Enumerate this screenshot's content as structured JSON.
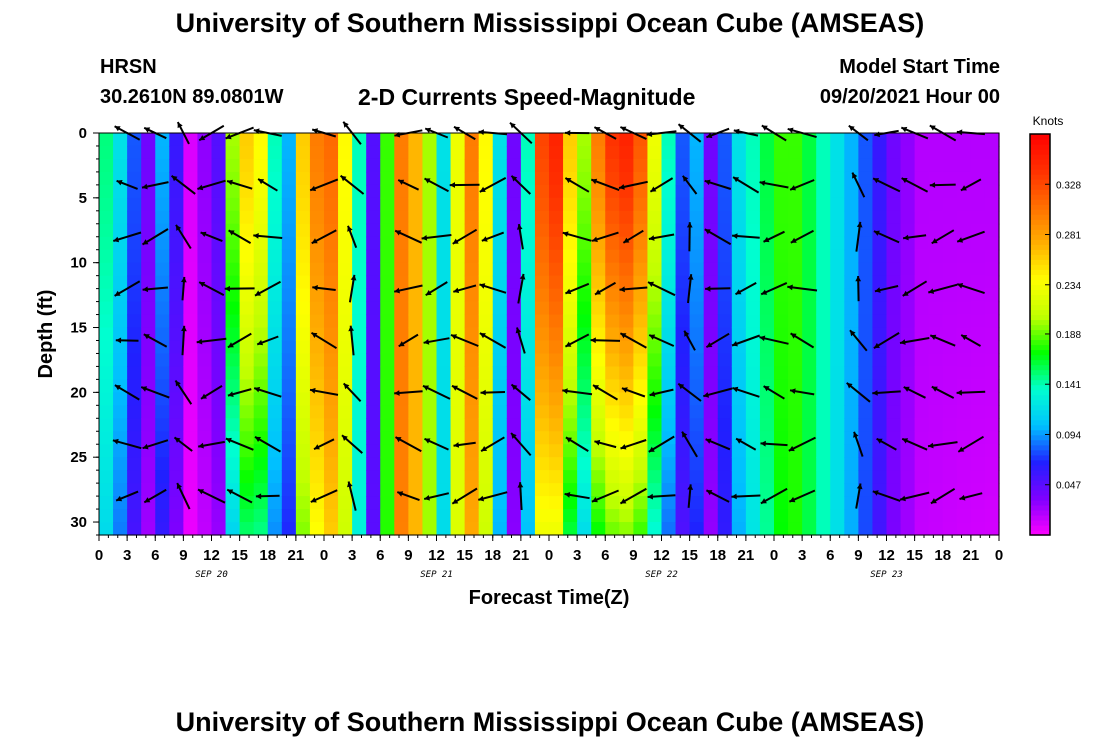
{
  "header": {
    "title": "University of Southern Mississippi Ocean Cube (AMSEAS)",
    "station_id": "HRSN",
    "coordinates": "30.2610N  89.0801W",
    "plot_title": "2-D Currents Speed-Magnitude",
    "model_label": "Model Start Time",
    "model_start": "09/20/2021 Hour 00"
  },
  "footer": {
    "title": "University of Southern Mississippi Ocean Cube (AMSEAS)"
  },
  "chart_data": {
    "type": "heatmap",
    "xlabel": "Forecast Time(Z)",
    "ylabel": "Depth (ft)",
    "x_unit": "hours from 09/20/2021 00Z",
    "xlim": [
      0,
      96
    ],
    "ylim": [
      0,
      31
    ],
    "x_tick_labels": [
      "0",
      "3",
      "6",
      "9",
      "12",
      "15",
      "18",
      "21",
      "0",
      "3",
      "6",
      "9",
      "12",
      "15",
      "18",
      "21",
      "0",
      "3",
      "6",
      "9",
      "12",
      "15",
      "18",
      "21",
      "0",
      "3",
      "6",
      "9",
      "12",
      "15",
      "18",
      "21",
      "0"
    ],
    "y_ticks": [
      0,
      5,
      10,
      15,
      20,
      25,
      30
    ],
    "day_labels": [
      {
        "label": "SEP 20",
        "hour": 12
      },
      {
        "label": "SEP 21",
        "hour": 36
      },
      {
        "label": "SEP 22",
        "hour": 60
      },
      {
        "label": "SEP 23",
        "hour": 84
      }
    ],
    "colorbar": {
      "label": "Knots",
      "ticks": [
        0.047,
        0.094,
        0.141,
        0.188,
        0.234,
        0.281,
        0.328
      ],
      "range": [
        0,
        0.375
      ],
      "colors": [
        "#ff00ff",
        "#8000ff",
        "#2020ff",
        "#00c0ff",
        "#00ffd0",
        "#00ff00",
        "#c0ff00",
        "#ffff00",
        "#ffb000",
        "#ff7000",
        "#ff3000",
        "#ff0000"
      ]
    },
    "column_hours": [
      0,
      1.5,
      3,
      4.5,
      6,
      7.5,
      9,
      10.5,
      12,
      13.5,
      15,
      16.5,
      18,
      19.5,
      21,
      22.5,
      24,
      25.5,
      27,
      28.5,
      30,
      31.5,
      33,
      34.5,
      36,
      37.5,
      39,
      40.5,
      42,
      43.5,
      45,
      46.5,
      48,
      49.5,
      51,
      52.5,
      54,
      55.5,
      57,
      58.5,
      60,
      61.5,
      63,
      64.5,
      66,
      67.5,
      69,
      70.5,
      72,
      73.5,
      75,
      76.5,
      78,
      79.5,
      81,
      82.5,
      84,
      85.5,
      87,
      88.5,
      90,
      91.5,
      93,
      94.5
    ],
    "column_speed": [
      0.15,
      0.12,
      0.08,
      0.04,
      0.1,
      0.06,
      0.01,
      0.03,
      0.05,
      0.2,
      0.26,
      0.24,
      0.14,
      0.1,
      0.26,
      0.3,
      0.31,
      0.24,
      0.14,
      0.05,
      0.18,
      0.3,
      0.27,
      0.2,
      0.12,
      0.23,
      0.3,
      0.24,
      0.12,
      0.04,
      0.14,
      0.33,
      0.35,
      0.26,
      0.2,
      0.3,
      0.34,
      0.35,
      0.32,
      0.23,
      0.14,
      0.08,
      0.1,
      0.04,
      0.08,
      0.12,
      0.14,
      0.16,
      0.18,
      0.18,
      0.16,
      0.14,
      0.12,
      0.1,
      0.08,
      0.06,
      0.04,
      0.03,
      0.02,
      0.02,
      0.02,
      0.02,
      0.02,
      0.02
    ],
    "vector_depths": [
      0,
      4,
      8,
      12,
      16,
      20,
      24,
      28
    ],
    "vector_hours": [
      3,
      6,
      9,
      12,
      15,
      18,
      24,
      27,
      33,
      36,
      39,
      42,
      45,
      51,
      54,
      57,
      60,
      63,
      66,
      69,
      72,
      75,
      81,
      84,
      87,
      90,
      93
    ]
  }
}
